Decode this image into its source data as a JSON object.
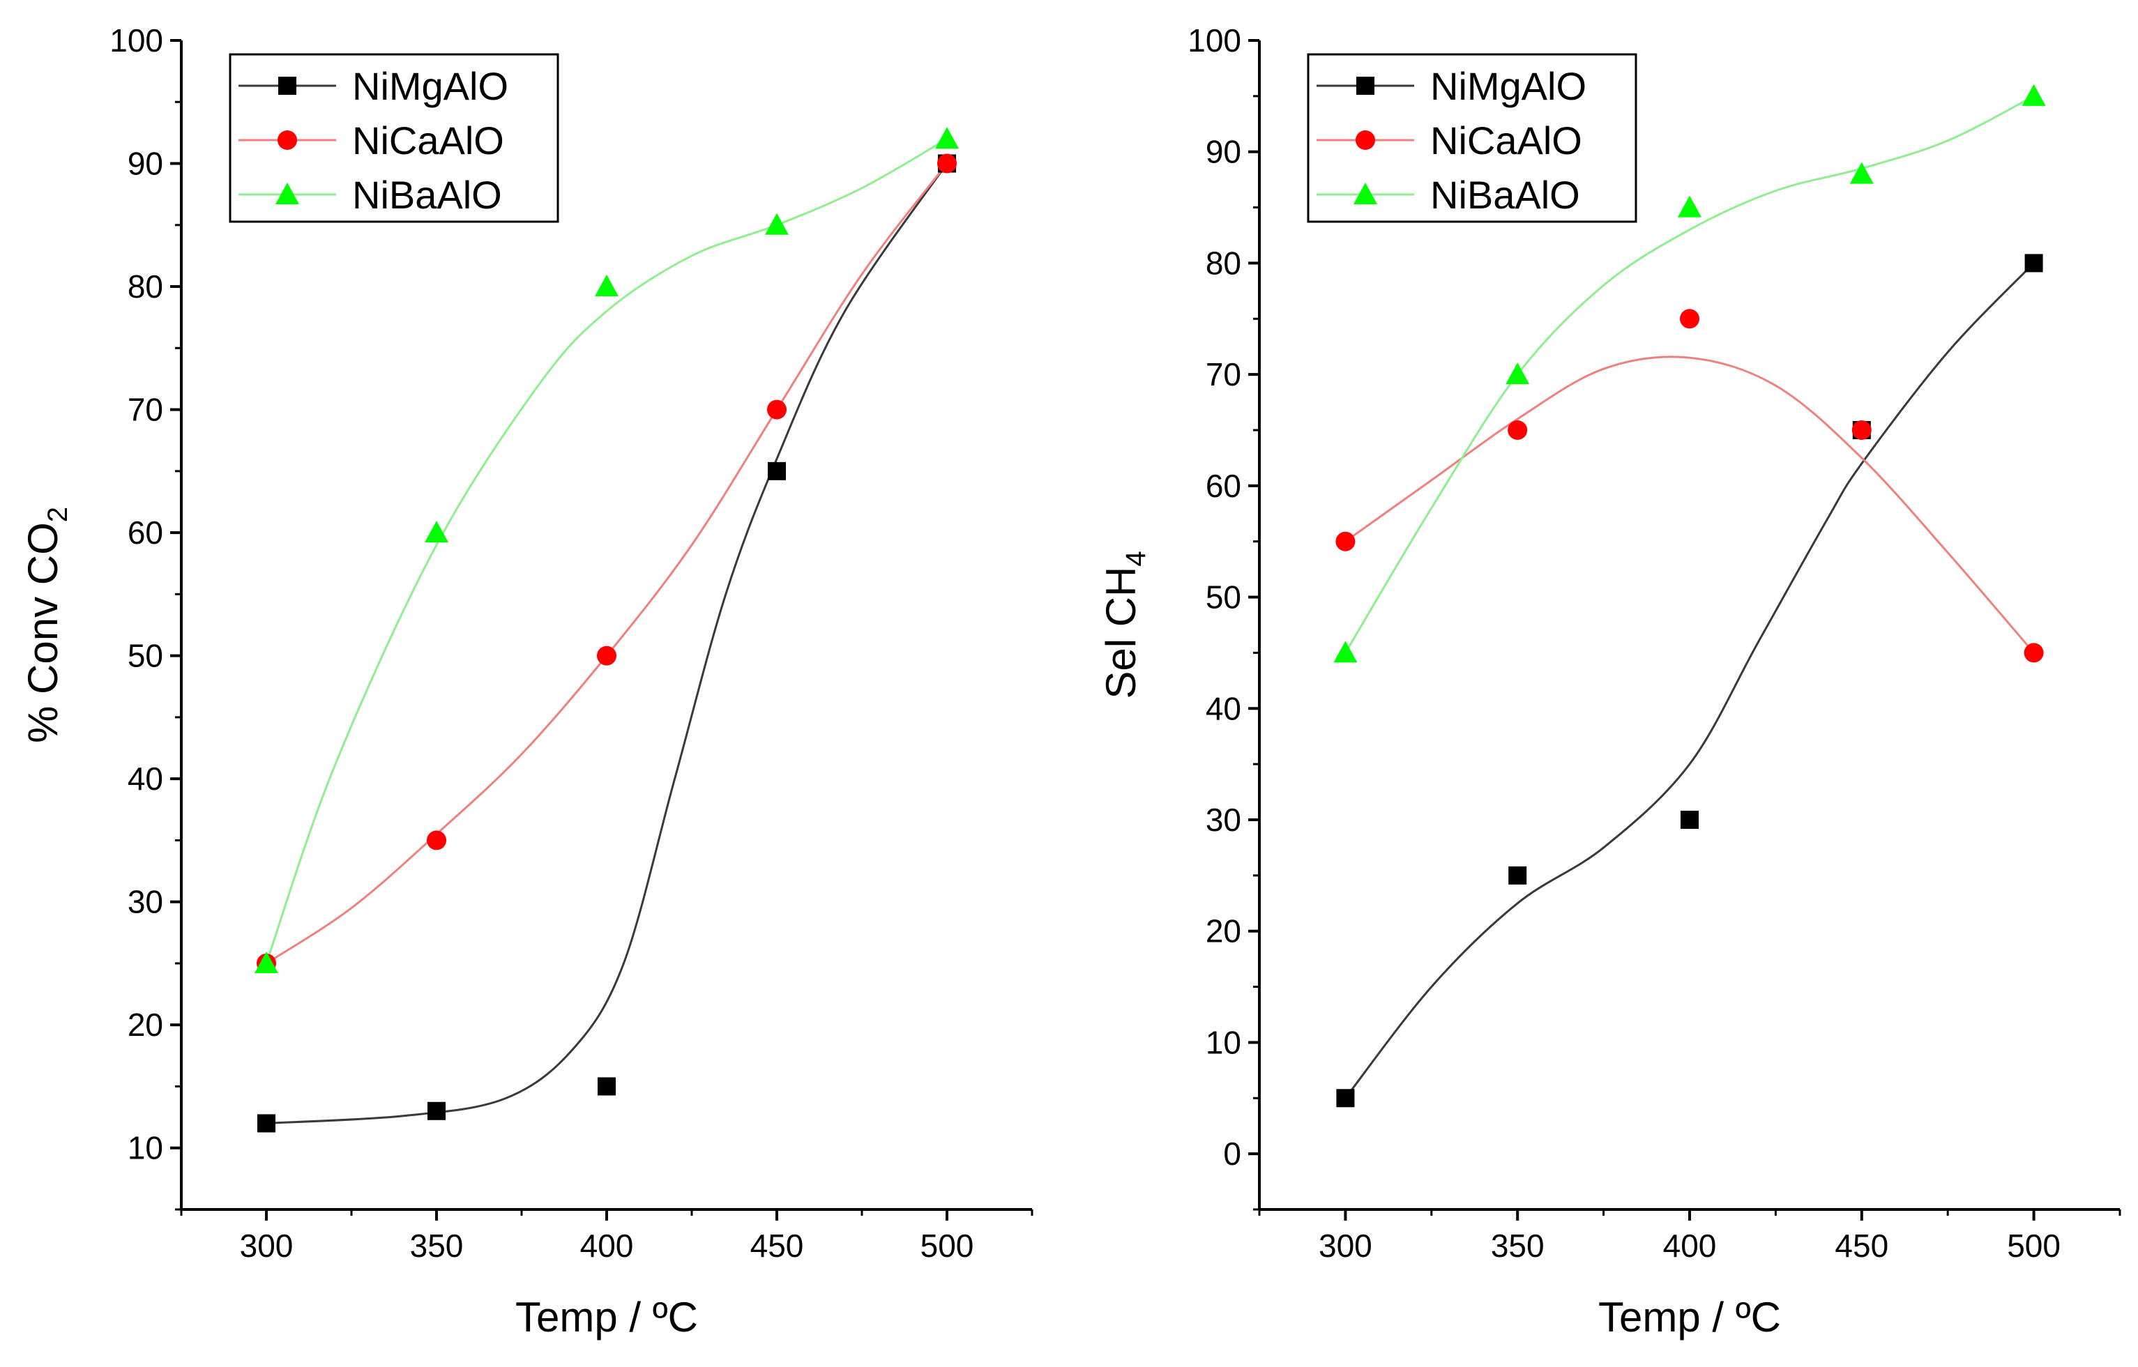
{
  "chart_data": [
    {
      "type": "line",
      "title": "",
      "xlabel": "Temp / ºC",
      "ylabel": "% Conv CO",
      "ylabel_subscript": "2",
      "xlim": [
        275,
        525
      ],
      "ylim": [
        5,
        100
      ],
      "xticks": [
        300,
        350,
        400,
        450,
        500
      ],
      "xtick_labels": [
        "300",
        "350",
        "400",
        "450",
        "500"
      ],
      "yticks": [
        10,
        20,
        30,
        40,
        50,
        60,
        70,
        80,
        90,
        100
      ],
      "ytick_labels": [
        "10",
        "20",
        "30",
        "40",
        "50",
        "60",
        "70",
        "80",
        "90",
        "100"
      ],
      "legend": "top-left",
      "x": [
        300,
        350,
        400,
        450,
        500
      ],
      "series": [
        {
          "name": "NiMgAlO",
          "marker": "square",
          "marker_color": "#000000",
          "line_color": "#3a3a3a",
          "values": [
            12,
            13,
            15,
            65,
            90
          ],
          "fit": [
            [
              300,
              12
            ],
            [
              340,
              12.6
            ],
            [
              370,
              14
            ],
            [
              390,
              18
            ],
            [
              405,
              25
            ],
            [
              420,
              40
            ],
            [
              435,
              55
            ],
            [
              450,
              66
            ],
            [
              470,
              78
            ],
            [
              500,
              90
            ]
          ]
        },
        {
          "name": "NiCaAlO",
          "marker": "circle",
          "marker_color": "#ff0000",
          "line_color": "#f08080",
          "values": [
            25,
            35,
            50,
            70,
            90
          ],
          "fit": [
            [
              300,
              25
            ],
            [
              325,
              29.5
            ],
            [
              350,
              35.5
            ],
            [
              375,
              42
            ],
            [
              400,
              50
            ],
            [
              425,
              59
            ],
            [
              450,
              70
            ],
            [
              475,
              81
            ],
            [
              500,
              90
            ]
          ]
        },
        {
          "name": "NiBaAlO",
          "marker": "triangle",
          "marker_color": "#00ff00",
          "line_color": "#90ee90",
          "values": [
            25,
            60,
            80,
            85,
            92
          ],
          "fit": [
            [
              300,
              25
            ],
            [
              320,
              41
            ],
            [
              350,
              59
            ],
            [
              380,
              72
            ],
            [
              400,
              78
            ],
            [
              425,
              82.5
            ],
            [
              450,
              85
            ],
            [
              475,
              88
            ],
            [
              500,
              92
            ]
          ]
        }
      ]
    },
    {
      "type": "line",
      "title": "",
      "xlabel": "Temp / ºC",
      "ylabel": "Sel CH",
      "ylabel_subscript": "4",
      "xlim": [
        275,
        525
      ],
      "ylim": [
        -5,
        100
      ],
      "xticks": [
        300,
        350,
        400,
        450,
        500
      ],
      "xtick_labels": [
        "300",
        "350",
        "400",
        "450",
        "500"
      ],
      "yticks": [
        0,
        10,
        20,
        30,
        40,
        50,
        60,
        70,
        80,
        90,
        100
      ],
      "ytick_labels": [
        "0",
        "10",
        "20",
        "30",
        "40",
        "50",
        "60",
        "70",
        "80",
        "90",
        "100"
      ],
      "legend": "top-left",
      "x": [
        300,
        350,
        400,
        450,
        500
      ],
      "series": [
        {
          "name": "NiMgAlO",
          "marker": "square",
          "marker_color": "#000000",
          "line_color": "#3a3a3a",
          "values": [
            5,
            25,
            30,
            65,
            80
          ],
          "fit": [
            [
              300,
              5
            ],
            [
              325,
              15
            ],
            [
              350,
              22.5
            ],
            [
              375,
              27.5
            ],
            [
              400,
              35
            ],
            [
              420,
              46
            ],
            [
              440,
              57
            ],
            [
              450,
              62
            ],
            [
              475,
              72
            ],
            [
              500,
              80
            ]
          ]
        },
        {
          "name": "NiCaAlO",
          "marker": "circle",
          "marker_color": "#ff0000",
          "line_color": "#f08080",
          "values": [
            55,
            65,
            75,
            65,
            45
          ],
          "fit": [
            [
              300,
              55
            ],
            [
              325,
              60.5
            ],
            [
              350,
              66
            ],
            [
              375,
              70.5
            ],
            [
              400,
              71.5
            ],
            [
              425,
              69
            ],
            [
              450,
              62.5
            ],
            [
              475,
              54
            ],
            [
              500,
              45
            ]
          ]
        },
        {
          "name": "NiBaAlO",
          "marker": "triangle",
          "marker_color": "#00ff00",
          "line_color": "#90ee90",
          "values": [
            45,
            70,
            85,
            88,
            95
          ],
          "fit": [
            [
              300,
              45
            ],
            [
              325,
              58
            ],
            [
              350,
              70
            ],
            [
              375,
              78
            ],
            [
              400,
              83
            ],
            [
              425,
              86.5
            ],
            [
              450,
              88.5
            ],
            [
              475,
              91
            ],
            [
              500,
              95
            ]
          ]
        }
      ]
    }
  ]
}
